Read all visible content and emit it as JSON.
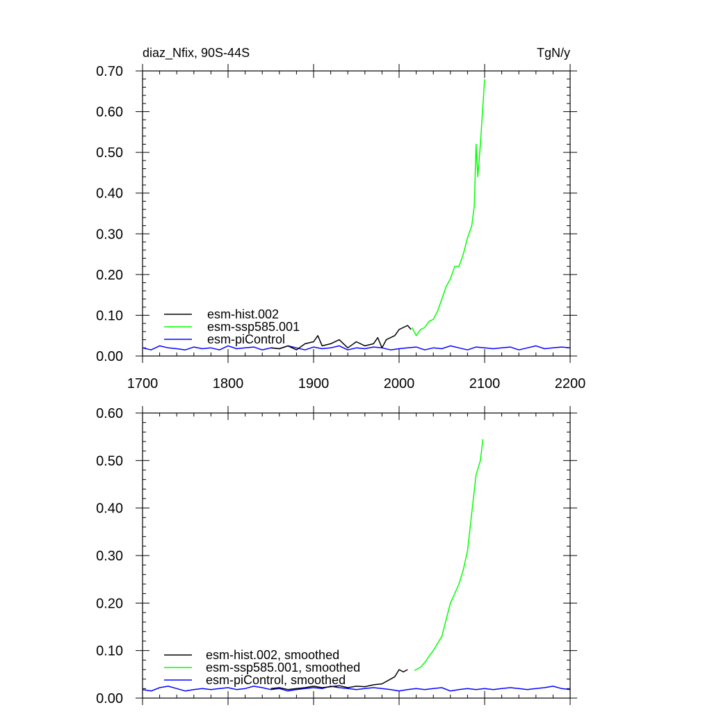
{
  "chart_data": [
    {
      "type": "line",
      "title_left": "diaz_Nfix, 90S-44S",
      "title_right": "TgN/y",
      "xlim": [
        1700,
        2200
      ],
      "ylim": [
        0,
        0.7
      ],
      "x_ticks": [
        1700,
        1800,
        1900,
        2000,
        2100,
        2200
      ],
      "x_tick_labels": [
        "1700",
        "1800",
        "1900",
        "2000",
        "2100",
        "2200"
      ],
      "y_ticks": [
        0,
        0.1,
        0.2,
        0.3,
        0.4,
        0.5,
        0.6,
        0.7
      ],
      "y_tick_labels": [
        "0.00",
        "0.10",
        "0.20",
        "0.30",
        "0.40",
        "0.50",
        "0.60",
        "0.70"
      ],
      "legend_position": "bottom-left",
      "series": [
        {
          "name": "esm-hist.002",
          "color": "#000000",
          "x": [
            1850,
            1860,
            1870,
            1880,
            1890,
            1900,
            1905,
            1910,
            1920,
            1930,
            1940,
            1950,
            1960,
            1970,
            1975,
            1980,
            1985,
            1990,
            1995,
            2000,
            2005,
            2010,
            2014
          ],
          "y": [
            0.02,
            0.018,
            0.025,
            0.015,
            0.03,
            0.035,
            0.05,
            0.025,
            0.03,
            0.04,
            0.02,
            0.035,
            0.025,
            0.03,
            0.045,
            0.02,
            0.04,
            0.045,
            0.05,
            0.065,
            0.07,
            0.075,
            0.065
          ]
        },
        {
          "name": "esm-ssp585.001",
          "color": "#00ff00",
          "x": [
            2015,
            2020,
            2025,
            2030,
            2035,
            2040,
            2045,
            2050,
            2055,
            2060,
            2065,
            2070,
            2075,
            2080,
            2085,
            2088,
            2090,
            2092,
            2095,
            2100
          ],
          "y": [
            0.07,
            0.05,
            0.065,
            0.07,
            0.085,
            0.09,
            0.11,
            0.14,
            0.17,
            0.19,
            0.22,
            0.22,
            0.25,
            0.29,
            0.32,
            0.37,
            0.52,
            0.44,
            0.52,
            0.68
          ]
        },
        {
          "name": "esm-piControl",
          "color": "#0000ff",
          "x": [
            1700,
            1710,
            1720,
            1730,
            1740,
            1750,
            1760,
            1770,
            1780,
            1790,
            1800,
            1810,
            1820,
            1830,
            1840,
            1850,
            1860,
            1870,
            1880,
            1890,
            1900,
            1910,
            1920,
            1930,
            1940,
            1950,
            1960,
            1970,
            1980,
            1990,
            2000,
            2010,
            2020,
            2030,
            2040,
            2050,
            2060,
            2070,
            2080,
            2090,
            2100,
            2110,
            2120,
            2130,
            2140,
            2150,
            2160,
            2170,
            2180,
            2190,
            2200
          ],
          "y": [
            0.02,
            0.015,
            0.025,
            0.02,
            0.018,
            0.015,
            0.022,
            0.018,
            0.02,
            0.015,
            0.025,
            0.018,
            0.02,
            0.022,
            0.015,
            0.02,
            0.018,
            0.025,
            0.02,
            0.015,
            0.022,
            0.018,
            0.02,
            0.025,
            0.015,
            0.02,
            0.018,
            0.022,
            0.02,
            0.015,
            0.018,
            0.02,
            0.022,
            0.015,
            0.02,
            0.018,
            0.025,
            0.02,
            0.015,
            0.022,
            0.02,
            0.018,
            0.02,
            0.022,
            0.015,
            0.02,
            0.025,
            0.018,
            0.02,
            0.022,
            0.02
          ]
        }
      ]
    },
    {
      "type": "line",
      "xlim": [
        1700,
        2200
      ],
      "ylim": [
        0,
        0.6
      ],
      "x_ticks": [
        1700,
        1800,
        1900,
        2000,
        2100,
        2200
      ],
      "y_ticks": [
        0,
        0.1,
        0.2,
        0.3,
        0.4,
        0.5,
        0.6
      ],
      "y_tick_labels": [
        "0.00",
        "0.10",
        "0.20",
        "0.30",
        "0.40",
        "0.50",
        "0.60"
      ],
      "legend_position": "bottom-left",
      "series": [
        {
          "name": "esm-hist.002, smoothed",
          "color": "#000000",
          "x": [
            1850,
            1860,
            1870,
            1880,
            1890,
            1900,
            1910,
            1920,
            1930,
            1940,
            1950,
            1960,
            1970,
            1980,
            1985,
            1990,
            1995,
            2000,
            2005,
            2010
          ],
          "y": [
            0.02,
            0.022,
            0.018,
            0.02,
            0.022,
            0.025,
            0.022,
            0.024,
            0.026,
            0.022,
            0.025,
            0.024,
            0.028,
            0.03,
            0.035,
            0.04,
            0.045,
            0.06,
            0.055,
            0.06
          ]
        },
        {
          "name": "esm-ssp585.001, smoothed",
          "color": "#00ff00",
          "x": [
            2018,
            2025,
            2030,
            2035,
            2040,
            2045,
            2050,
            2055,
            2060,
            2065,
            2070,
            2075,
            2080,
            2085,
            2090,
            2095,
            2098
          ],
          "y": [
            0.058,
            0.065,
            0.075,
            0.088,
            0.1,
            0.115,
            0.13,
            0.165,
            0.2,
            0.22,
            0.24,
            0.27,
            0.31,
            0.39,
            0.47,
            0.5,
            0.545
          ]
        },
        {
          "name": "esm-piControl, smoothed",
          "color": "#0000ff",
          "x": [
            1700,
            1710,
            1720,
            1730,
            1740,
            1750,
            1760,
            1770,
            1780,
            1790,
            1800,
            1810,
            1820,
            1830,
            1840,
            1850,
            1860,
            1870,
            1880,
            1890,
            1900,
            1910,
            1920,
            1930,
            1940,
            1950,
            1960,
            1970,
            1980,
            1990,
            2000,
            2010,
            2020,
            2030,
            2040,
            2050,
            2060,
            2070,
            2080,
            2090,
            2100,
            2110,
            2120,
            2130,
            2140,
            2150,
            2160,
            2170,
            2180,
            2190,
            2200
          ],
          "y": [
            0.018,
            0.015,
            0.022,
            0.025,
            0.02,
            0.015,
            0.018,
            0.02,
            0.018,
            0.02,
            0.022,
            0.018,
            0.02,
            0.025,
            0.022,
            0.018,
            0.02,
            0.015,
            0.018,
            0.02,
            0.022,
            0.02,
            0.025,
            0.022,
            0.02,
            0.018,
            0.02,
            0.022,
            0.02,
            0.018,
            0.015,
            0.018,
            0.02,
            0.018,
            0.02,
            0.022,
            0.015,
            0.018,
            0.02,
            0.018,
            0.02,
            0.018,
            0.02,
            0.022,
            0.02,
            0.018,
            0.02,
            0.022,
            0.025,
            0.02,
            0.018
          ]
        }
      ]
    }
  ]
}
